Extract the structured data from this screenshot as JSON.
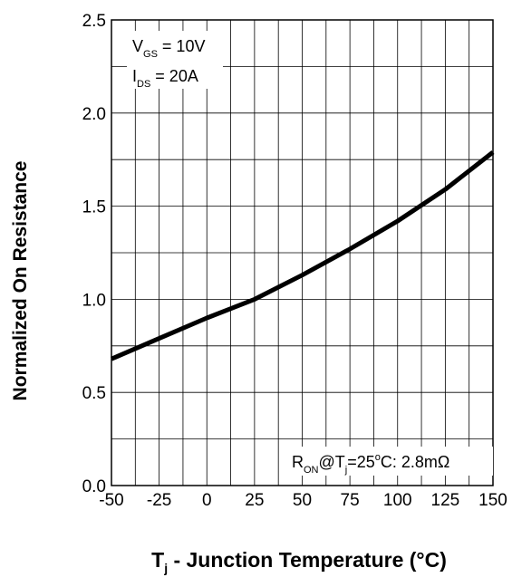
{
  "chart_data": {
    "type": "line",
    "title": "",
    "xlabel": {
      "main": "T",
      "sub": "j",
      "rest": " - Junction Temperature (°C)"
    },
    "ylabel": "Normalized On Resistance",
    "xlim": [
      -50,
      150
    ],
    "ylim": [
      0.0,
      2.5
    ],
    "x_ticks": [
      "-50",
      "-25",
      "0",
      "25",
      "50",
      "75",
      "100",
      "125",
      "150"
    ],
    "y_ticks": [
      "0.0",
      "0.5",
      "1.0",
      "1.5",
      "2.0",
      "2.5"
    ],
    "grid": true,
    "series": [
      {
        "x": [
          -50,
          -25,
          0,
          25,
          50,
          75,
          100,
          125,
          150
        ],
        "y": [
          0.68,
          0.79,
          0.9,
          1.0,
          1.13,
          1.27,
          1.42,
          1.59,
          1.79
        ]
      }
    ],
    "annotations": {
      "vgs": {
        "main": "V",
        "sub": "GS",
        "rest": " = 10V"
      },
      "ids": {
        "main": "I",
        "sub": "DS",
        "rest": " = 20A"
      },
      "ron": {
        "main": "R",
        "sub": "ON",
        "mid": "@T",
        "sub2": "j",
        "rest": "=25",
        "sup": "o",
        "end": "C: 2.8mΩ"
      }
    },
    "colors": {
      "line": "#000000",
      "grid": "#000000"
    }
  }
}
